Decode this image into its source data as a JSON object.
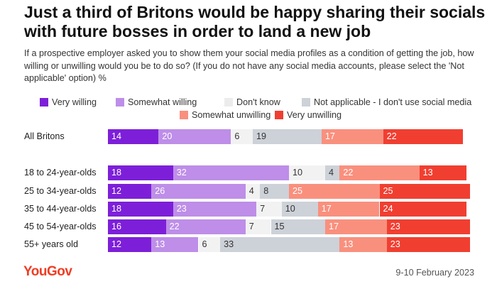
{
  "title": "Just a third of Britons would be happy sharing their socials with future bosses in order to land a new job",
  "subtitle": "If a prospective employer asked you to show them your social media profiles as a condition of getting the job, how willing or unwilling would you be to do so? (If you do not have any social media accounts, please select the 'Not applicable' option) %",
  "brand": "YouGov",
  "date": "9-10 February 2023",
  "colors": {
    "very_willing": "#7d1fd9",
    "somewhat_willing": "#be8ee8",
    "dont_know": "#f2f2f2",
    "not_applicable": "#cdd1d8",
    "somewhat_unwilling": "#f9907e",
    "very_unwilling": "#f03f31"
  },
  "chart_data": {
    "type": "bar",
    "orientation": "horizontal",
    "stacked": true,
    "categories": [
      "All Britons",
      "18 to 24-year-olds",
      "25 to 34-year-olds",
      "35 to 44-year-olds",
      "45 to 54-year-olds",
      "55+ years old"
    ],
    "series": [
      {
        "name": "Very willing",
        "values": [
          14,
          18,
          12,
          18,
          16,
          12
        ]
      },
      {
        "name": "Somewhat willing",
        "values": [
          20,
          32,
          26,
          23,
          22,
          13
        ]
      },
      {
        "name": "Don't know",
        "values": [
          6,
          10,
          4,
          7,
          7,
          6
        ]
      },
      {
        "name": "Not applicable - I don't use social media",
        "values": [
          19,
          4,
          8,
          10,
          15,
          33
        ]
      },
      {
        "name": "Somewhat unwilling",
        "values": [
          17,
          22,
          25,
          17,
          17,
          13
        ]
      },
      {
        "name": "Very unwilling",
        "values": [
          22,
          13,
          25,
          24,
          23,
          23
        ]
      }
    ],
    "legend_position": "top",
    "data_labels": true,
    "xlim": [
      0,
      100
    ]
  }
}
